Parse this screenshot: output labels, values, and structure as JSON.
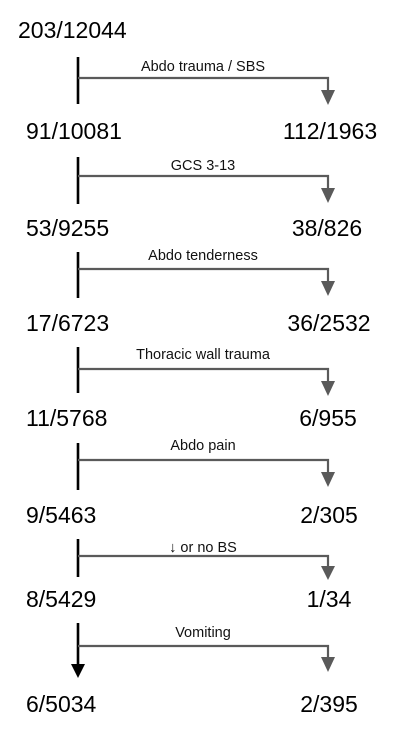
{
  "root": {
    "count": "203/12044"
  },
  "steps": [
    {
      "rule": "Abdo trauma / SBS",
      "remaining": "91/10081",
      "split": "112/1963"
    },
    {
      "rule": "GCS 3-13",
      "remaining": "53/9255",
      "split": "38/826"
    },
    {
      "rule": "Abdo tenderness",
      "remaining": "17/6723",
      "split": "36/2532"
    },
    {
      "rule": "Thoracic wall trauma",
      "remaining": "11/5768",
      "split": "6/955"
    },
    {
      "rule": "Abdo pain",
      "remaining": "9/5463",
      "split": "2/305"
    },
    {
      "rule": "↓ or no BS",
      "remaining": "8/5429",
      "split": "1/34"
    },
    {
      "rule": "Vomiting",
      "remaining": "6/5034",
      "split": "2/395"
    }
  ],
  "colors": {
    "trunk": "#000000",
    "branch": "#5a5a5a",
    "text": "#000000"
  }
}
